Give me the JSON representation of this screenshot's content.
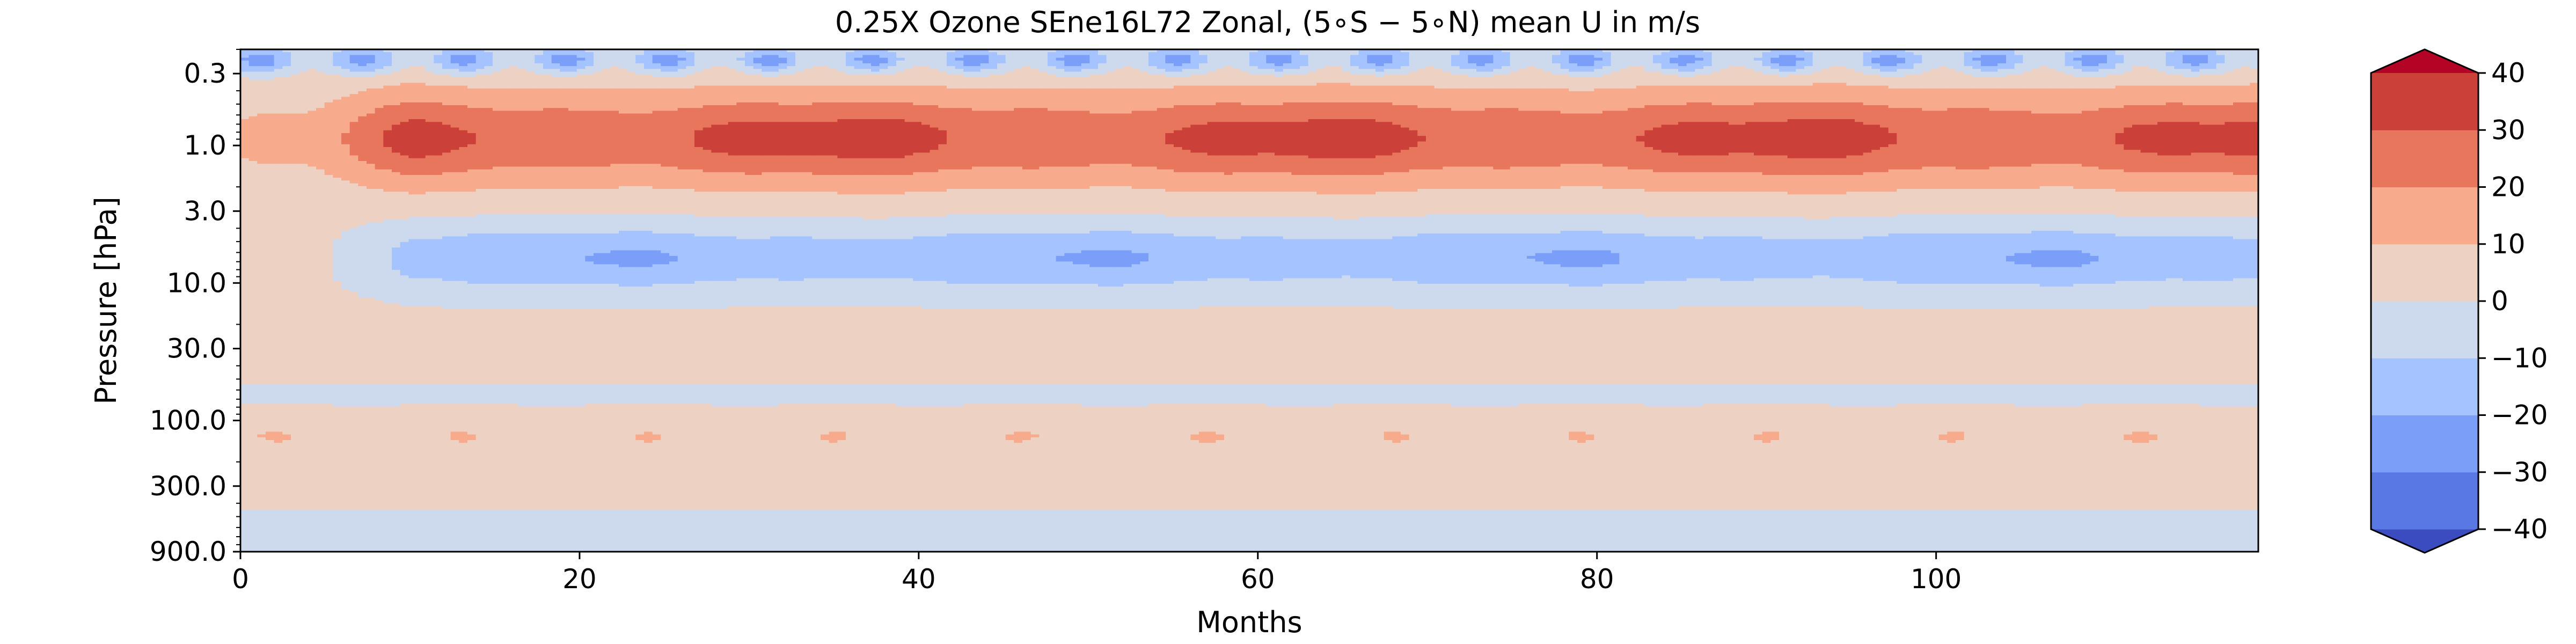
{
  "chart_data": {
    "type": "contourf",
    "title": "0.25X Ozone SEne16L72 Zonal, (5$^\\circ$S − 5$^\\circ$N) mean U in m/s",
    "title_display": "0.25X Ozone SEne16L72 Zonal, (5∘S − 5∘N) mean U in m/s",
    "xlabel": "Months",
    "ylabel": "Pressure [hPa]",
    "xlim": [
      0,
      119
    ],
    "ylim": [
      900,
      0.2
    ],
    "yscale": "log",
    "xticks": [
      0,
      20,
      40,
      60,
      80,
      100
    ],
    "xtick_labels": [
      "0",
      "20",
      "40",
      "60",
      "80",
      "100"
    ],
    "yticks": [
      0.3,
      1.0,
      3.0,
      10.0,
      30.0,
      100.0,
      300.0,
      900.0
    ],
    "ytick_labels": [
      "0.3",
      "1.0",
      "3.0",
      "10.0",
      "30.0",
      "100.0",
      "300.0",
      "900.0"
    ],
    "colormap": "coolwarm",
    "levels": [
      -40,
      -30,
      -20,
      -10,
      0,
      10,
      20,
      30,
      40
    ],
    "level_colors": [
      "#5a78e4",
      "#7b9ff9",
      "#a5c3fe",
      "#cdd9ec",
      "#edd1c2",
      "#f7aa8c",
      "#e8765d",
      "#cc403a"
    ],
    "extend_colors": {
      "under": "#3b4cc0",
      "over": "#b40426"
    },
    "colorbar": {
      "extend": "both",
      "ticks": [
        40,
        30,
        20,
        10,
        0,
        -10,
        -20,
        -30,
        -40
      ],
      "tick_labels": [
        "40",
        "30",
        "20",
        "10",
        "0",
        "−10",
        "−20",
        "−30",
        "−40"
      ]
    },
    "grid": false
  }
}
